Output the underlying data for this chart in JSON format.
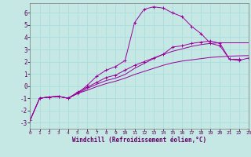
{
  "title": "",
  "xlabel": "Windchill (Refroidissement éolien,°C)",
  "xlim": [
    0,
    23
  ],
  "ylim": [
    -3.5,
    6.8
  ],
  "xticks": [
    0,
    1,
    2,
    3,
    4,
    5,
    6,
    7,
    8,
    9,
    10,
    11,
    12,
    13,
    14,
    15,
    16,
    17,
    18,
    19,
    20,
    21,
    22,
    23
  ],
  "yticks": [
    -3,
    -2,
    -1,
    0,
    1,
    2,
    3,
    4,
    5,
    6
  ],
  "bg_color": "#c5e8e5",
  "line_color": "#990099",
  "grid_color": "#aadddd",
  "lines": [
    {
      "x": [
        0,
        1,
        2,
        3,
        4,
        5,
        6,
        7,
        8,
        9,
        10,
        11,
        12,
        13,
        14,
        15,
        16,
        17,
        18,
        19,
        20,
        21,
        22,
        23
      ],
      "y": [
        -2.8,
        -1.0,
        -0.9,
        -0.85,
        -1.0,
        -0.6,
        0.05,
        0.8,
        1.3,
        1.6,
        2.1,
        5.2,
        6.3,
        6.5,
        6.4,
        6.0,
        5.7,
        4.9,
        4.3,
        3.5,
        3.3,
        2.2,
        2.1,
        2.3
      ],
      "marker": "+"
    },
    {
      "x": [
        1,
        2,
        3,
        4,
        5,
        6,
        7,
        8,
        9,
        10,
        11,
        12,
        13,
        14,
        15,
        16,
        17,
        18,
        19,
        20,
        21,
        22
      ],
      "y": [
        -1.0,
        -0.9,
        -0.85,
        -1.0,
        -0.5,
        -0.1,
        0.3,
        0.7,
        0.9,
        1.3,
        1.7,
        2.0,
        2.3,
        2.6,
        3.2,
        3.3,
        3.5,
        3.6,
        3.7,
        3.5,
        2.2,
        2.2
      ],
      "marker": "+"
    },
    {
      "x": [
        0,
        1,
        2,
        3,
        4,
        5,
        6,
        7,
        8,
        9,
        10,
        11,
        12,
        13,
        14,
        15,
        16,
        17,
        18,
        19,
        20,
        21,
        22,
        23
      ],
      "y": [
        -2.8,
        -1.0,
        -0.9,
        -0.85,
        -1.0,
        -0.6,
        -0.2,
        0.15,
        0.45,
        0.65,
        0.95,
        1.45,
        1.85,
        2.25,
        2.6,
        2.85,
        3.05,
        3.25,
        3.4,
        3.5,
        3.55,
        3.55,
        3.55,
        3.55
      ],
      "marker": null
    },
    {
      "x": [
        0,
        1,
        2,
        3,
        4,
        5,
        6,
        7,
        8,
        9,
        10,
        11,
        12,
        13,
        14,
        15,
        16,
        17,
        18,
        19,
        20,
        21,
        22,
        23
      ],
      "y": [
        -2.8,
        -1.0,
        -0.9,
        -0.85,
        -1.0,
        -0.6,
        -0.35,
        -0.05,
        0.2,
        0.4,
        0.65,
        0.95,
        1.2,
        1.45,
        1.7,
        1.9,
        2.05,
        2.15,
        2.25,
        2.35,
        2.4,
        2.45,
        2.48,
        2.5
      ],
      "marker": null
    }
  ]
}
